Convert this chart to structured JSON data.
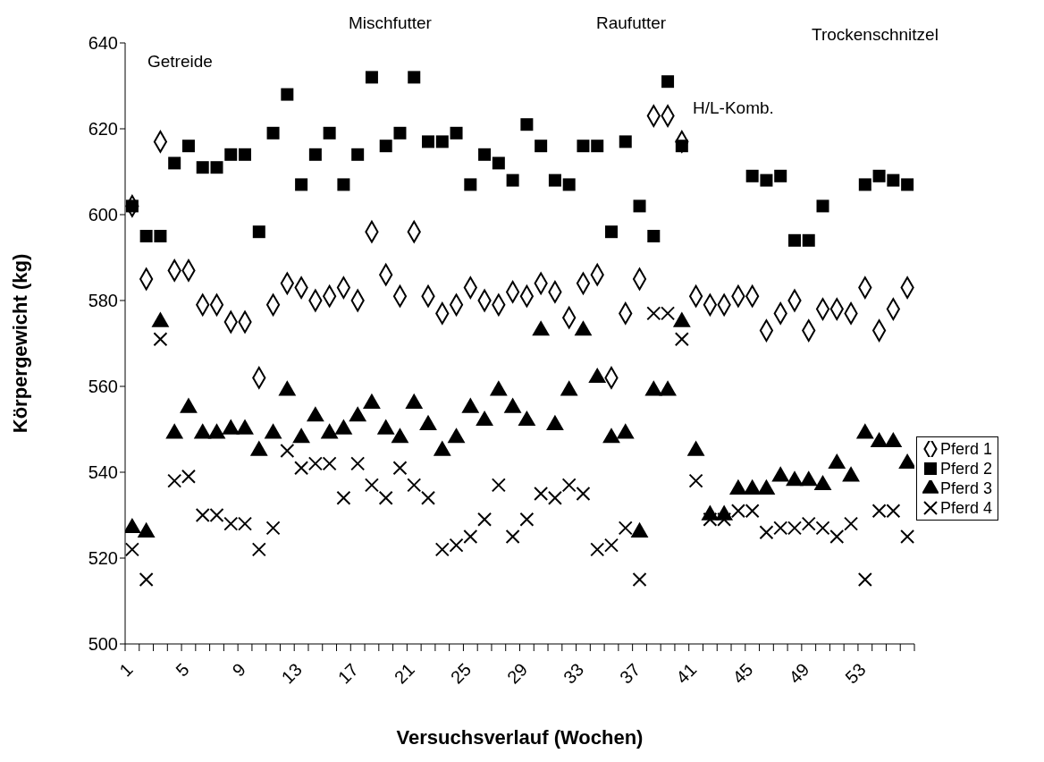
{
  "chart_data": {
    "type": "scatter",
    "xlabel": "Versuchsverlauf (Wochen)",
    "ylabel": "Körpergewicht (kg)",
    "categories": [
      "1",
      null,
      null,
      null,
      "5",
      null,
      null,
      null,
      "9",
      null,
      null,
      null,
      "13",
      null,
      null,
      null,
      "17",
      null,
      null,
      null,
      "21",
      null,
      null,
      null,
      "25",
      null,
      null,
      null,
      "29",
      null,
      null,
      null,
      "33",
      null,
      null,
      null,
      "37",
      null,
      null,
      null,
      "41",
      null,
      null,
      null,
      "45",
      null,
      null,
      null,
      "49",
      null,
      null,
      null,
      "53",
      null,
      null,
      null
    ],
    "ylim": [
      500,
      640
    ],
    "yticks": [
      500,
      520,
      540,
      560,
      580,
      600,
      620,
      640
    ],
    "grid": false,
    "legend": "right",
    "annotations": [
      "Getreide",
      "Mischfutter",
      "Raufutter",
      "H/L-Komb.",
      "Trockenschnitzel"
    ],
    "series": [
      {
        "name": "Pferd 1",
        "color": "#000000",
        "marker": "diamond",
        "values": [
          602,
          585,
          617,
          587,
          587,
          579,
          579,
          575,
          575,
          562,
          579,
          584,
          583,
          580,
          581,
          583,
          580,
          596,
          586,
          581,
          596,
          581,
          577,
          579,
          583,
          580,
          579,
          582,
          581,
          584,
          582,
          576,
          584,
          586,
          562,
          577,
          585,
          623,
          623,
          617,
          581,
          579,
          579,
          581,
          581,
          573,
          577,
          580,
          573,
          578,
          578,
          577,
          583,
          573,
          578,
          583
        ]
      },
      {
        "name": "Pferd 2",
        "color": "#000000",
        "marker": "square",
        "values": [
          602,
          595,
          595,
          612,
          616,
          611,
          611,
          614,
          614,
          596,
          619,
          628,
          607,
          614,
          619,
          607,
          614,
          632,
          616,
          619,
          632,
          617,
          617,
          619,
          607,
          614,
          612,
          608,
          621,
          616,
          608,
          607,
          616,
          616,
          596,
          617,
          602,
          595,
          631,
          616,
          null,
          null,
          null,
          null,
          609,
          608,
          609,
          594,
          594,
          602,
          null,
          null,
          607,
          609,
          608,
          607
        ]
      },
      {
        "name": "Pferd 3",
        "color": "#000000",
        "marker": "triangle",
        "values": [
          527,
          526,
          575,
          549,
          555,
          549,
          549,
          550,
          550,
          545,
          549,
          559,
          548,
          553,
          549,
          550,
          553,
          556,
          550,
          548,
          556,
          551,
          545,
          548,
          555,
          552,
          559,
          555,
          552,
          573,
          551,
          559,
          573,
          562,
          548,
          549,
          526,
          559,
          559,
          575,
          545,
          530,
          530,
          536,
          536,
          536,
          539,
          538,
          538,
          537,
          542,
          539,
          549,
          547,
          547,
          542
        ]
      },
      {
        "name": "Pferd 4",
        "color": "#000000",
        "marker": "cross",
        "values": [
          522,
          515,
          571,
          538,
          539,
          530,
          530,
          528,
          528,
          522,
          527,
          545,
          541,
          542,
          542,
          534,
          542,
          537,
          534,
          541,
          537,
          534,
          522,
          523,
          525,
          529,
          537,
          525,
          529,
          535,
          534,
          537,
          535,
          522,
          523,
          527,
          515,
          577,
          577,
          571,
          538,
          529,
          529,
          531,
          531,
          526,
          527,
          527,
          528,
          527,
          525,
          528,
          515,
          531,
          531,
          525
        ]
      }
    ]
  }
}
